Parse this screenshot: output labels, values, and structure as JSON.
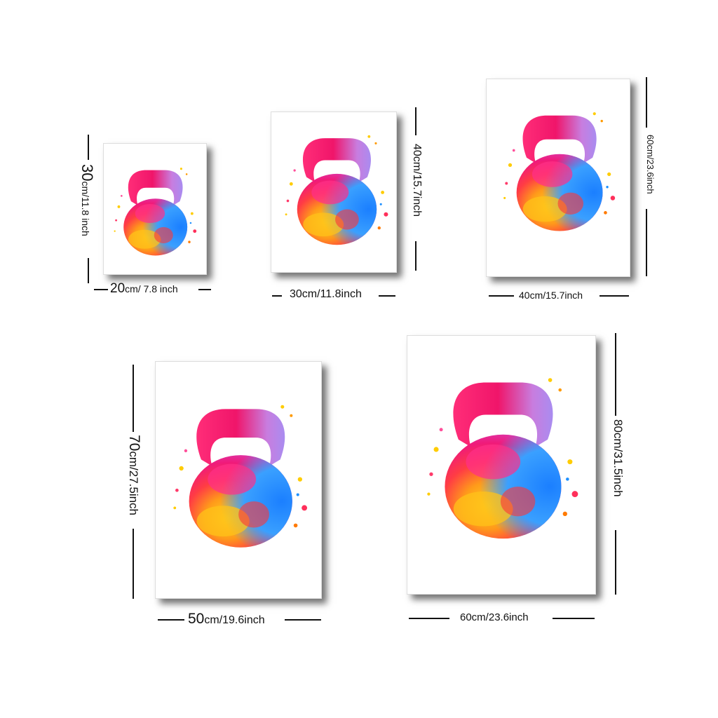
{
  "sizes": [
    {
      "height_label_big": "30",
      "height_label_rest": "cm/11.8 inch",
      "width_label_big": "20",
      "width_label_rest": "cm/ 7.8 inch"
    },
    {
      "height_label": "40cm/15.7inch",
      "width_label": "30cm/11.8inch"
    },
    {
      "height_label": "60cm/23.6inch",
      "width_label": "40cm/15.7inch"
    },
    {
      "height_label_big": "70",
      "height_label_rest": "cm/27.5inch",
      "width_label_big": "50",
      "width_label_rest": "cm/19.6inch"
    },
    {
      "height_label": "80cm/31.5inch",
      "width_label": "60cm/23.6inch"
    }
  ],
  "artwork": {
    "subject": "kettlebell-watercolor-icon",
    "colors": [
      "#e8175d",
      "#ff4f9a",
      "#b36bd8",
      "#1e90ff",
      "#ffcc00",
      "#ff7a00",
      "#ff3b2f"
    ]
  }
}
